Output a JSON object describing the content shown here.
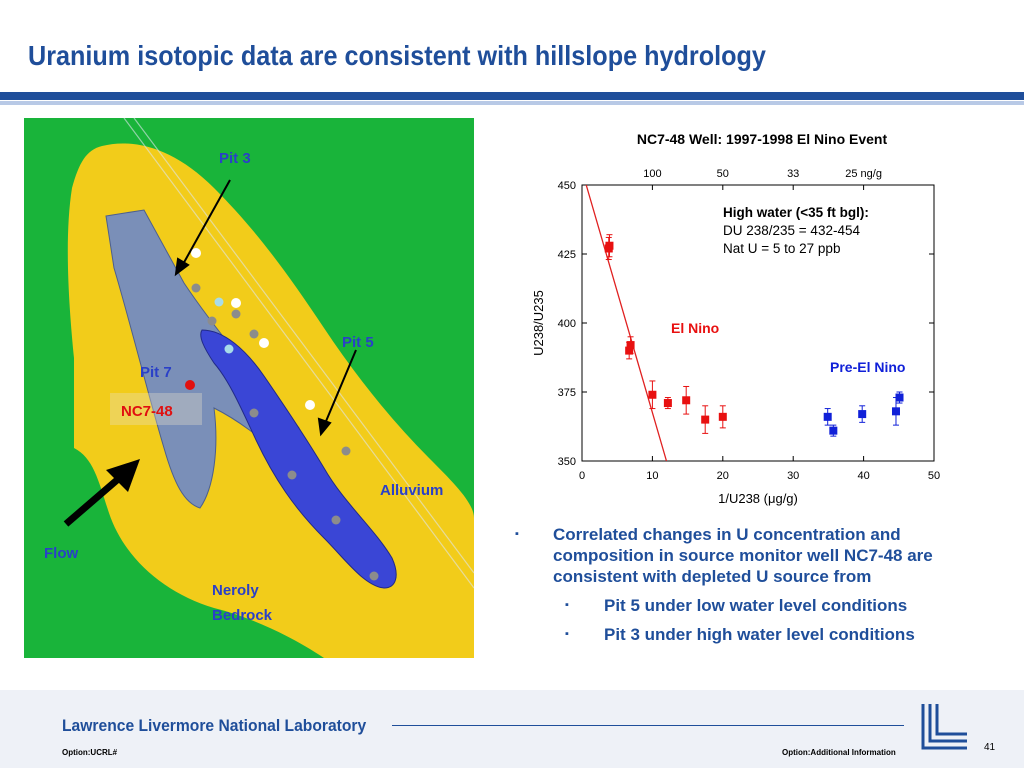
{
  "slide": {
    "title": "Uranium isotopic data are consistent with hillslope hydrology",
    "page_number": "41"
  },
  "map": {
    "labels": {
      "pit3": "Pit 3",
      "pit5": "Pit 5",
      "pit7": "Pit 7",
      "well": "NC7-48",
      "alluvium": "Alluvium",
      "flow": "Flow",
      "bedrock_line1": "Neroly",
      "bedrock_line2": "Bedrock"
    },
    "colors": {
      "bedrock": "#19b43a",
      "alluvium": "#f2cc1a",
      "pit3": "#7a8fb8",
      "pit5": "#3a46d6",
      "well": "#e01010"
    }
  },
  "chart_data": {
    "type": "scatter",
    "title": "NC7-48 Well: 1997-1998 El Nino Event",
    "xlabel": "1/U238 (μg/g)",
    "ylabel": "U238/U235",
    "xlim": [
      0,
      50
    ],
    "ylim": [
      350,
      450
    ],
    "x_ticks": [
      0,
      10,
      20,
      30,
      40,
      50
    ],
    "y_ticks": [
      350,
      375,
      400,
      425,
      450
    ],
    "top_axis": {
      "ticks": [
        {
          "x": 10,
          "label": "100"
        },
        {
          "x": 20,
          "label": "50"
        },
        {
          "x": 30,
          "label": "33"
        },
        {
          "x": 40,
          "label": "25 ng/g"
        }
      ]
    },
    "annotation": {
      "heading": "High water (<35 ft bgl):",
      "line1": "DU 238/235 = 432-454",
      "line2": "Nat U = 5 to 27 ppb"
    },
    "trend_line": {
      "x": [
        0.6,
        12.0
      ],
      "y": [
        450,
        350
      ],
      "color": "#e02020"
    },
    "series": [
      {
        "name": "El Nino",
        "color": "#e81010",
        "points": [
          {
            "x": 3.8,
            "y": 427,
            "err": 4
          },
          {
            "x": 3.9,
            "y": 428,
            "err": 4
          },
          {
            "x": 6.7,
            "y": 390,
            "err": 3
          },
          {
            "x": 6.9,
            "y": 392,
            "err": 3
          },
          {
            "x": 10.0,
            "y": 374,
            "err": 5
          },
          {
            "x": 12.2,
            "y": 371,
            "err": 2
          },
          {
            "x": 14.8,
            "y": 372,
            "err": 5
          },
          {
            "x": 17.5,
            "y": 365,
            "err": 5
          },
          {
            "x": 20.0,
            "y": 366,
            "err": 4
          }
        ]
      },
      {
        "name": "Pre-El Nino",
        "color": "#1020d8",
        "points": [
          {
            "x": 34.9,
            "y": 366,
            "err": 3
          },
          {
            "x": 35.7,
            "y": 361,
            "err": 2
          },
          {
            "x": 39.8,
            "y": 367,
            "err": 3
          },
          {
            "x": 44.6,
            "y": 368,
            "err": 5
          },
          {
            "x": 45.1,
            "y": 373,
            "err": 2
          }
        ]
      }
    ]
  },
  "bullets": {
    "main": "Correlated changes in U concentration and composition in source monitor well NC7-48 are consistent with depleted U source from",
    "sub1": "Pit 5 under low water level conditions",
    "sub2": "Pit 3 under high water level conditions",
    "marker": "▪"
  },
  "footer": {
    "lab_name": "Lawrence Livermore National Laboratory",
    "option_left": "Option:UCRL#",
    "option_right": "Option:Additional Information"
  }
}
